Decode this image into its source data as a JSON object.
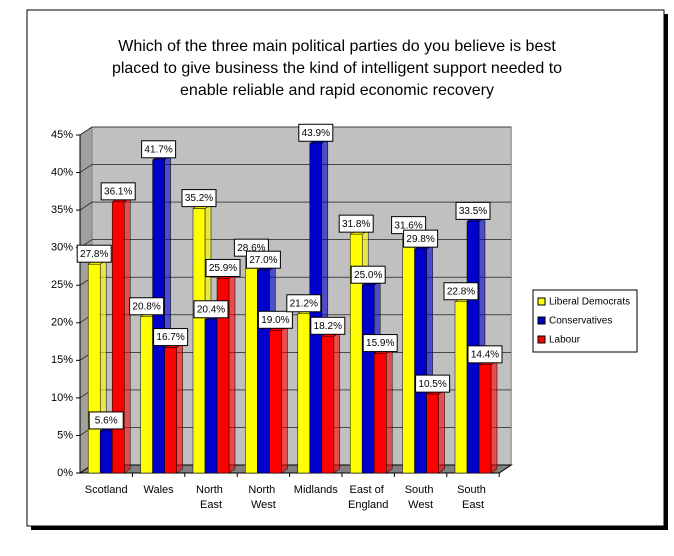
{
  "chart_data": {
    "type": "bar3d",
    "title": [
      "Which of the three main political parties do you believe is best",
      "placed to give business the kind of intelligent support needed to",
      "enable reliable and rapid economic recovery"
    ],
    "categories": [
      "Scotland",
      "Wales",
      "North East",
      "North West",
      "Midlands",
      "East of England",
      "South West",
      "South East"
    ],
    "series": [
      {
        "name": "Liberal Democrats",
        "color": "#ffff00",
        "values": [
          27.8,
          20.8,
          35.2,
          28.6,
          21.2,
          31.8,
          31.6,
          22.8
        ],
        "value_labels": [
          "27.8%",
          "20.8%",
          "35.2%",
          "28.6%",
          "21.2%",
          "31.8%",
          "31.6%",
          "22.8%"
        ]
      },
      {
        "name": "Conservatives",
        "color": "#0000cc",
        "values": [
          5.6,
          41.7,
          20.4,
          27.0,
          43.9,
          25.0,
          29.8,
          33.5
        ],
        "value_labels": [
          "5.6%",
          "41.7%",
          "20.4%",
          "27.0%",
          "43.9%",
          "25.0%",
          "29.8%",
          "33.5%"
        ]
      },
      {
        "name": "Labour",
        "color": "#ff0000",
        "values": [
          36.1,
          16.7,
          25.9,
          19.0,
          18.2,
          15.9,
          10.5,
          14.4
        ],
        "value_labels": [
          "36.1%",
          "16.7%",
          "25.9%",
          "19.0%",
          "18.2%",
          "15.9%",
          "10.5%",
          "14.4%"
        ]
      }
    ],
    "ylim": [
      0,
      45
    ],
    "yticks": [
      {
        "value": 0,
        "label": "0%"
      },
      {
        "value": 5,
        "label": "5%"
      },
      {
        "value": 10,
        "label": "10%"
      },
      {
        "value": 15,
        "label": "15%"
      },
      {
        "value": 20,
        "label": "20%"
      },
      {
        "value": 25,
        "label": "25%"
      },
      {
        "value": 30,
        "label": "30%"
      },
      {
        "value": 35,
        "label": "35%"
      },
      {
        "value": 40,
        "label": "40%"
      },
      {
        "value": 45,
        "label": "45%"
      }
    ],
    "grid": true,
    "legend": "right"
  }
}
